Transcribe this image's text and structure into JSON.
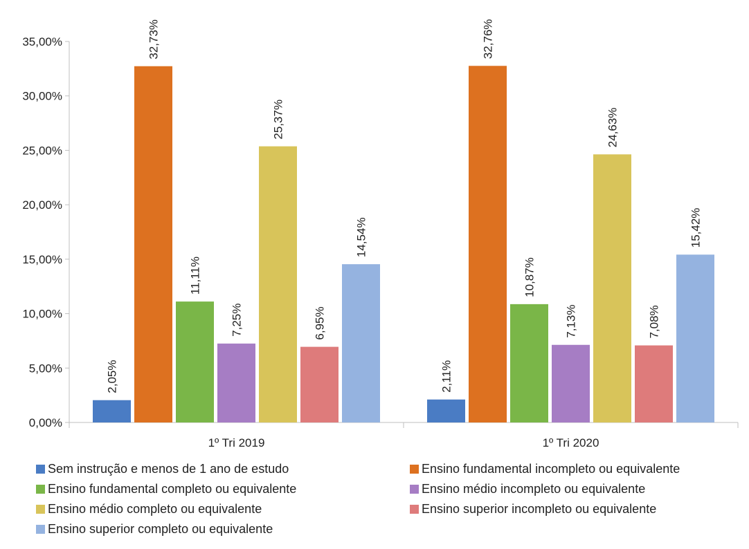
{
  "chart_data": {
    "type": "bar",
    "categories": [
      "1º Tri 2019",
      "1º Tri 2020"
    ],
    "series": [
      {
        "name": "Sem instrução e menos de 1 ano de estudo",
        "values": [
          2.05,
          2.11
        ],
        "labels": [
          "2,05%",
          "2,11%"
        ],
        "color": "#4a7cc4"
      },
      {
        "name": "Ensino fundamental incompleto ou equivalente",
        "values": [
          32.73,
          32.76
        ],
        "labels": [
          "32,73%",
          "32,76%"
        ],
        "color": "#dd7120"
      },
      {
        "name": "Ensino fundamental completo ou equivalente",
        "values": [
          11.11,
          10.87
        ],
        "labels": [
          "11,11%",
          "10,87%"
        ],
        "color": "#7ab648"
      },
      {
        "name": "Ensino médio incompleto ou equivalente",
        "values": [
          7.25,
          7.13
        ],
        "labels": [
          "7,25%",
          "7,13%"
        ],
        "color": "#a67dc4"
      },
      {
        "name": "Ensino médio completo ou equivalente",
        "values": [
          25.37,
          24.63
        ],
        "labels": [
          "25,37%",
          "24,63%"
        ],
        "color": "#d8c45a"
      },
      {
        "name": "Ensino superior incompleto ou equivalente",
        "values": [
          6.95,
          7.08
        ],
        "labels": [
          "6,95%",
          "7,08%"
        ],
        "color": "#de7b7b"
      },
      {
        "name": "Ensino superior completo ou equivalente",
        "values": [
          14.54,
          15.42
        ],
        "labels": [
          "14,54%",
          "15,42%"
        ],
        "color": "#95b3e0"
      }
    ],
    "ylim": [
      0,
      35
    ],
    "yticks": [
      0,
      5,
      10,
      15,
      20,
      25,
      30,
      35
    ],
    "ytick_labels": [
      "0,00%",
      "5,00%",
      "10,00%",
      "15,00%",
      "20,00%",
      "25,00%",
      "30,00%",
      "35,00%"
    ],
    "title": "",
    "xlabel": "",
    "ylabel": "",
    "grid": false,
    "legend_position": "bottom"
  }
}
